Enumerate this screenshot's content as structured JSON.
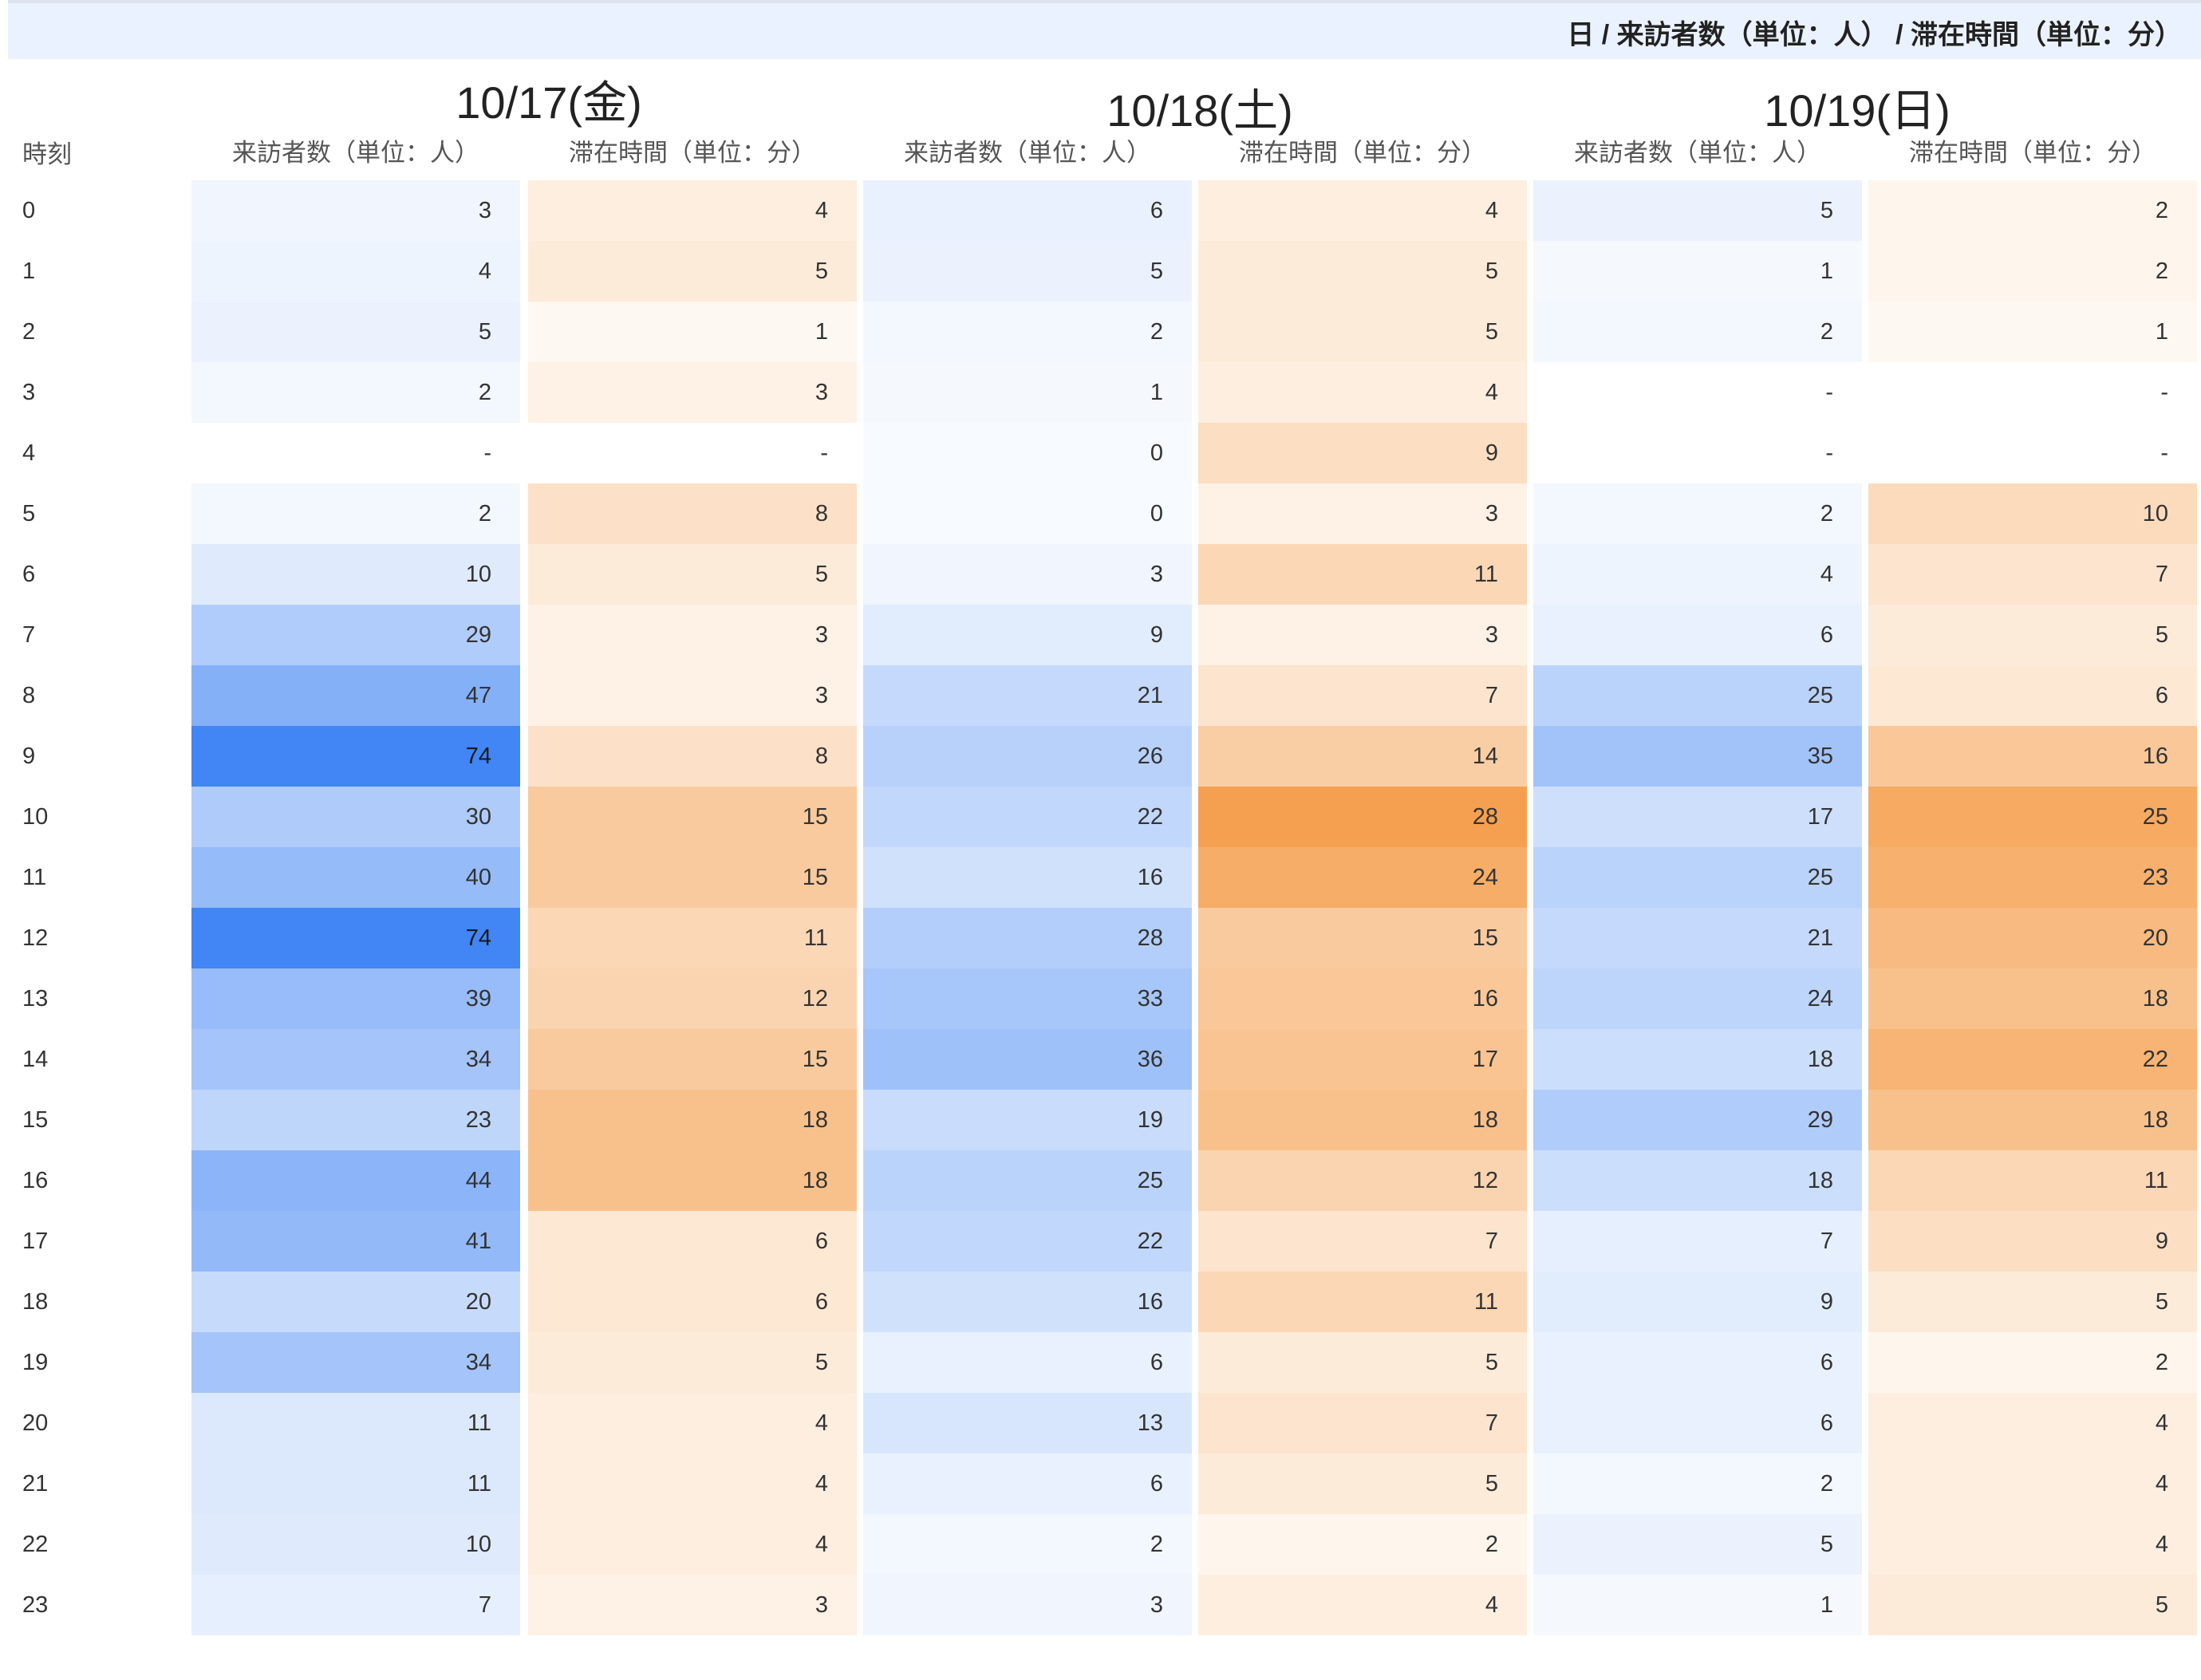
{
  "header": {
    "title": "日 / 来訪者数（単位：人） / 滞在時間（単位：分）",
    "time_label": "時刻"
  },
  "colors": {
    "visitors_base": "#4285f4",
    "stay_base": "#f5a050",
    "empty": "#ffffff"
  },
  "chart_data": {
    "type": "heatmap",
    "title": "日 / 来訪者数（単位：人） / 滞在時間（単位：分）",
    "row_label": "時刻",
    "hours": [
      "0",
      "1",
      "2",
      "3",
      "4",
      "5",
      "6",
      "7",
      "8",
      "9",
      "10",
      "11",
      "12",
      "13",
      "14",
      "15",
      "16",
      "17",
      "18",
      "19",
      "20",
      "21",
      "22",
      "23"
    ],
    "days": [
      {
        "date": "10/17(金)",
        "visitors_label": "来訪者数（単位：人）",
        "stay_label": "滞在時間（単位：分）",
        "visitors": [
          "3",
          "4",
          "5",
          "2",
          "-",
          "2",
          "10",
          "29",
          "47",
          "74",
          "30",
          "40",
          "74",
          "39",
          "34",
          "23",
          "44",
          "41",
          "20",
          "34",
          "11",
          "11",
          "10",
          "7"
        ],
        "stay": [
          "4",
          "5",
          "1",
          "3",
          "-",
          "8",
          "5",
          "3",
          "3",
          "8",
          "15",
          "15",
          "11",
          "12",
          "15",
          "18",
          "18",
          "6",
          "6",
          "5",
          "4",
          "4",
          "4",
          "3"
        ]
      },
      {
        "date": "10/18(土)",
        "visitors_label": "来訪者数（単位：人）",
        "stay_label": "滞在時間（単位：分）",
        "visitors": [
          "6",
          "5",
          "2",
          "1",
          "0",
          "0",
          "3",
          "9",
          "21",
          "26",
          "22",
          "16",
          "28",
          "33",
          "36",
          "19",
          "25",
          "22",
          "16",
          "6",
          "13",
          "6",
          "2",
          "3"
        ],
        "stay": [
          "4",
          "5",
          "5",
          "4",
          "9",
          "3",
          "11",
          "3",
          "7",
          "14",
          "28",
          "24",
          "15",
          "16",
          "17",
          "18",
          "12",
          "7",
          "11",
          "5",
          "7",
          "5",
          "2",
          "4"
        ]
      },
      {
        "date": "10/19(日)",
        "visitors_label": "来訪者数（単位：人）",
        "stay_label": "滞在時間（単位：分）",
        "visitors": [
          "5",
          "1",
          "2",
          "-",
          "-",
          "2",
          "4",
          "6",
          "25",
          "35",
          "17",
          "25",
          "21",
          "24",
          "18",
          "29",
          "18",
          "7",
          "9",
          "6",
          "6",
          "2",
          "5",
          "1"
        ],
        "stay": [
          "2",
          "2",
          "1",
          "-",
          "-",
          "10",
          "7",
          "5",
          "6",
          "16",
          "25",
          "23",
          "20",
          "18",
          "22",
          "18",
          "11",
          "9",
          "5",
          "2",
          "4",
          "4",
          "4",
          "5"
        ]
      }
    ]
  }
}
